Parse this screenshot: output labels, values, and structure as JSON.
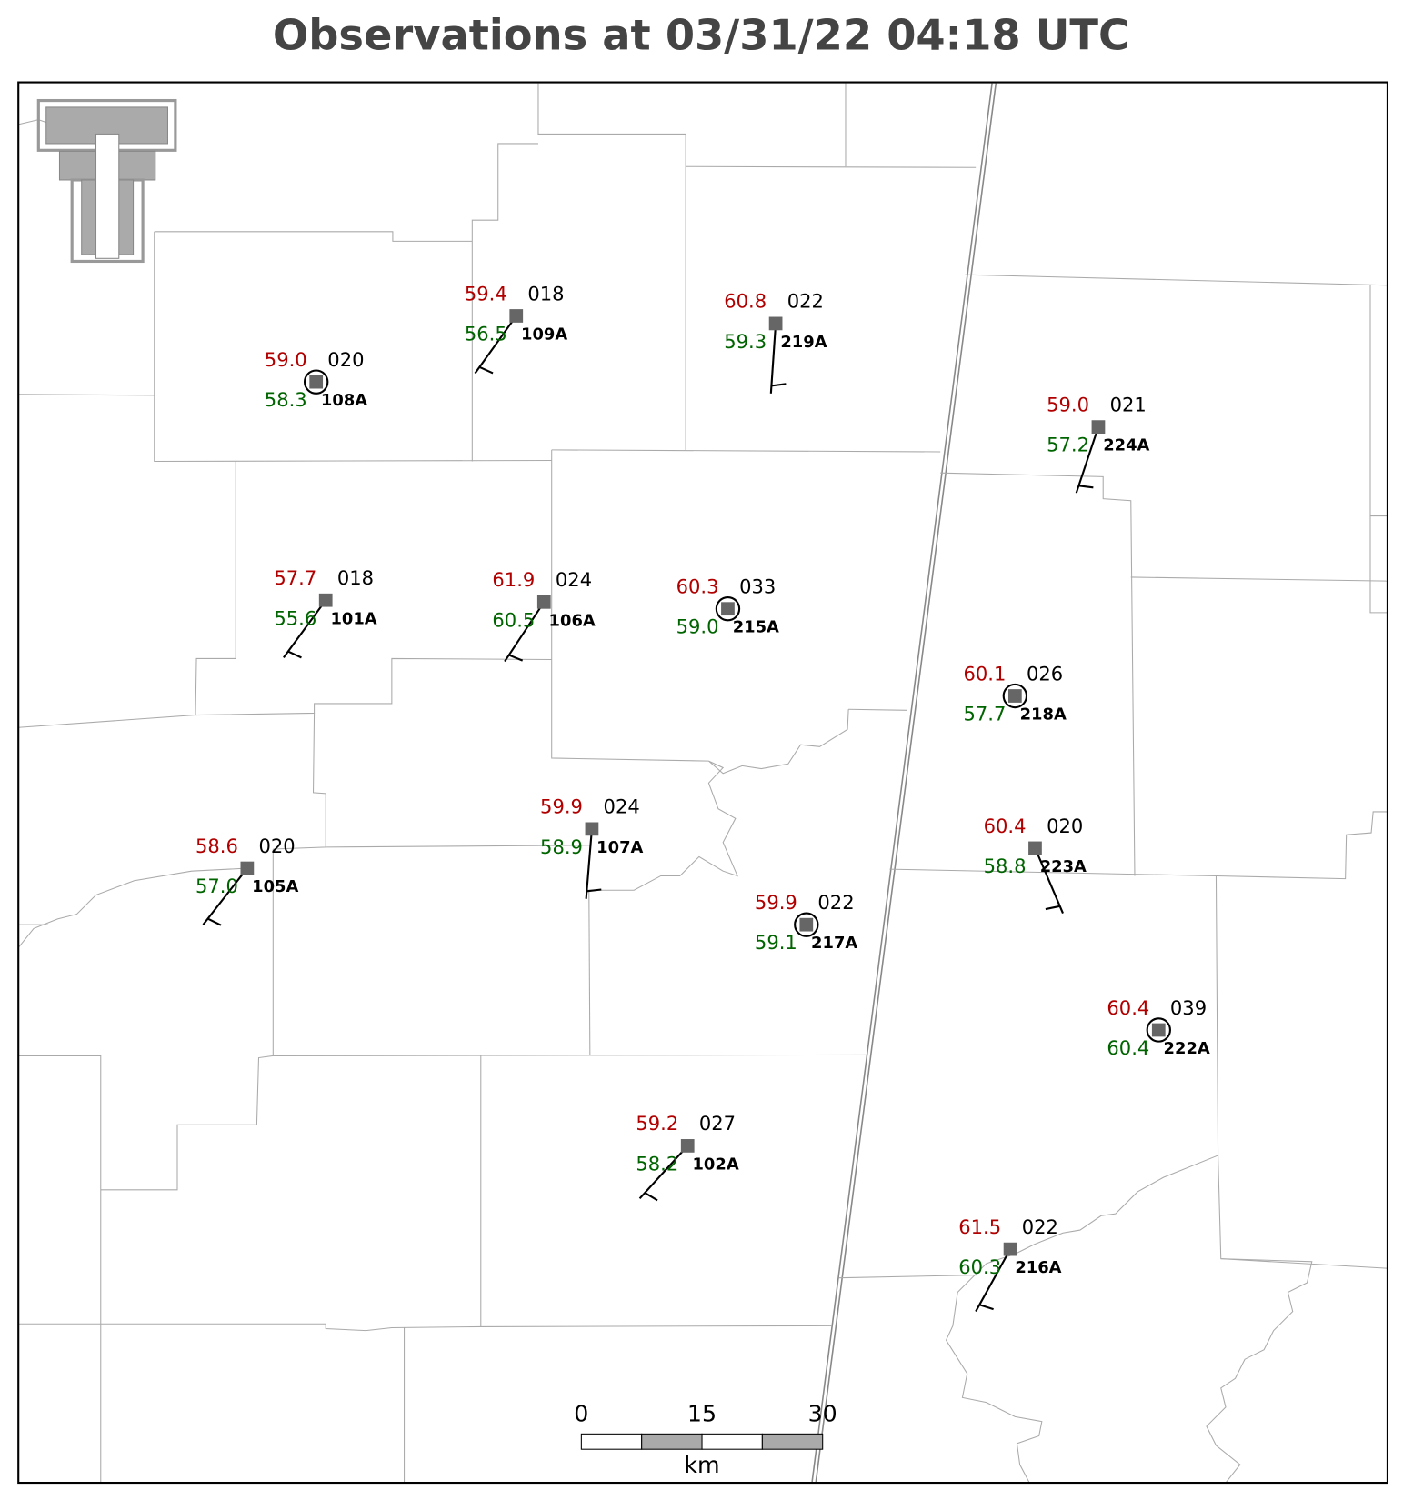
{
  "header": {
    "title": "Observations at 03/31/22 04:18 UTC"
  },
  "stations": [
    {
      "id": "108A",
      "temperature": "59.0",
      "dewpoint": "58.3",
      "pressure": "020"
    },
    {
      "id": "109A",
      "temperature": "59.4",
      "dewpoint": "56.5",
      "pressure": "018"
    },
    {
      "id": "219A",
      "temperature": "60.8",
      "dewpoint": "59.3",
      "pressure": "022"
    },
    {
      "id": "224A",
      "temperature": "59.0",
      "dewpoint": "57.2",
      "pressure": "021"
    },
    {
      "id": "101A",
      "temperature": "57.7",
      "dewpoint": "55.6",
      "pressure": "018"
    },
    {
      "id": "106A",
      "temperature": "61.9",
      "dewpoint": "60.5",
      "pressure": "024"
    },
    {
      "id": "215A",
      "temperature": "60.3",
      "dewpoint": "59.0",
      "pressure": "033"
    },
    {
      "id": "218A",
      "temperature": "60.1",
      "dewpoint": "57.7",
      "pressure": "026"
    },
    {
      "id": "107A",
      "temperature": "59.9",
      "dewpoint": "58.9",
      "pressure": "024"
    },
    {
      "id": "105A",
      "temperature": "58.6",
      "dewpoint": "57.0",
      "pressure": "020"
    },
    {
      "id": "223A",
      "temperature": "60.4",
      "dewpoint": "58.8",
      "pressure": "020"
    },
    {
      "id": "217A",
      "temperature": "59.9",
      "dewpoint": "59.1",
      "pressure": "022"
    },
    {
      "id": "222A",
      "temperature": "60.4",
      "dewpoint": "60.4",
      "pressure": "039"
    },
    {
      "id": "102A",
      "temperature": "59.2",
      "dewpoint": "58.2",
      "pressure": "027"
    },
    {
      "id": "216A",
      "temperature": "61.5",
      "dewpoint": "60.3",
      "pressure": "022"
    }
  ],
  "scale_bar": {
    "ticks": [
      0,
      15,
      30
    ],
    "unit": "km"
  }
}
